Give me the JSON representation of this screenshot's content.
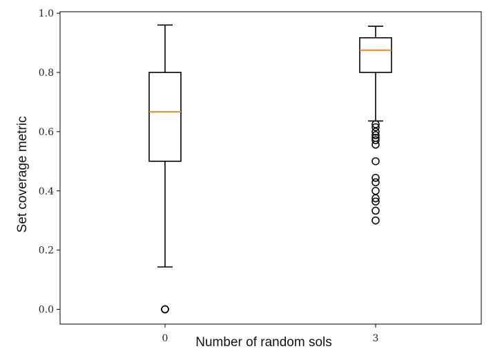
{
  "chart_data": {
    "type": "boxplot",
    "title": "",
    "xlabel": "Number of random sols",
    "ylabel": "Set coverage metric",
    "ylim": [
      -0.05,
      1.005
    ],
    "yticks": [
      "0.0",
      "0.2",
      "0.4",
      "0.6",
      "0.8",
      "1.0"
    ],
    "grid": false,
    "categories": [
      "0",
      "3"
    ],
    "boxes": [
      {
        "category": "0",
        "whisker_low": 0.143,
        "q1": 0.5,
        "median": 0.667,
        "q3": 0.8,
        "whisker_high": 0.96,
        "outliers": [
          0.0,
          0.0,
          0.0
        ]
      },
      {
        "category": "3",
        "whisker_low": 0.636,
        "q1": 0.8,
        "median": 0.875,
        "q3": 0.917,
        "whisker_high": 0.956,
        "outliers": [
          0.625,
          0.615,
          0.6,
          0.588,
          0.579,
          0.571,
          0.556,
          0.5,
          0.444,
          0.429,
          0.4,
          0.375,
          0.364,
          0.333,
          0.3
        ]
      }
    ],
    "colors": {
      "box": "#000000",
      "median": "#ff7f0e",
      "outlier": "#000000"
    }
  }
}
